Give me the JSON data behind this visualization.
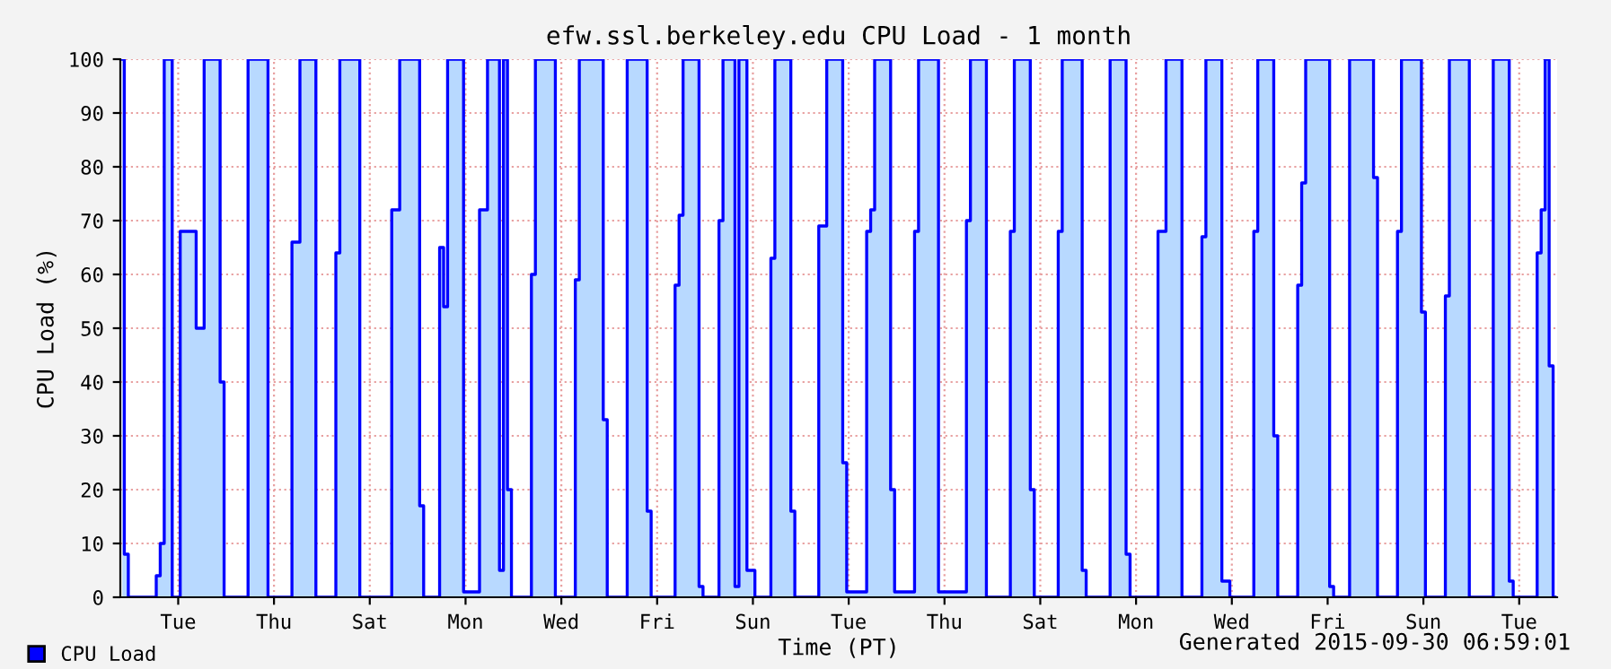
{
  "chart_data": {
    "type": "area",
    "title": "efw.ssl.berkeley.edu CPU Load - 1 month",
    "xlabel": "Time (PT)",
    "ylabel": "CPU Load (%)",
    "annotations": [
      "Generated 2015-09-30 06:59:01"
    ],
    "ylim": [
      0,
      100
    ],
    "yticks": [
      0,
      10,
      20,
      30,
      40,
      50,
      60,
      70,
      80,
      90,
      100
    ],
    "grid": true,
    "legend": "bottom left",
    "categories": [
      null,
      null,
      null,
      null,
      null,
      null,
      null,
      null,
      null,
      null,
      null,
      null,
      null,
      null,
      "Tue",
      null,
      null,
      null,
      null,
      null,
      null,
      null,
      null,
      null,
      null,
      null,
      null,
      null,
      null,
      null,
      null,
      null,
      null,
      null,
      null,
      null,
      null,
      null,
      "Thu",
      null,
      null,
      null,
      null,
      null,
      null,
      null,
      null,
      null,
      null,
      null,
      null,
      null,
      null,
      null,
      null,
      null,
      null,
      null,
      null,
      null,
      null,
      null,
      "Sat",
      null,
      null,
      null,
      null,
      null,
      null,
      null,
      null,
      null,
      null,
      null,
      null,
      null,
      null,
      null,
      null,
      null,
      null,
      null,
      null,
      null,
      null,
      null,
      "Mon",
      null,
      null,
      null,
      null,
      null,
      null,
      null,
      null,
      null,
      null,
      null,
      null,
      null,
      null,
      null,
      null,
      null,
      null,
      null,
      null,
      null,
      null,
      null,
      "Wed",
      null,
      null,
      null,
      null,
      null,
      null,
      null,
      null,
      null,
      null,
      null,
      null,
      null,
      null,
      null,
      null,
      null,
      null,
      null,
      null,
      null,
      null,
      null,
      "Fri",
      null,
      null,
      null,
      null,
      null,
      null,
      null,
      null,
      null,
      null,
      null,
      null,
      null,
      null,
      null,
      null,
      null,
      null,
      null,
      null,
      null,
      null,
      null,
      "Sun",
      null,
      null,
      null,
      null,
      null,
      null,
      null,
      null,
      null,
      null,
      null,
      null,
      null,
      null,
      null,
      null,
      null,
      null,
      null,
      null,
      null,
      null,
      null,
      "Tue",
      null,
      null,
      null,
      null,
      null,
      null,
      null,
      null,
      null,
      null,
      null,
      null,
      null,
      null,
      null,
      null,
      null,
      null,
      null,
      null,
      null,
      null,
      null,
      "Thu",
      null,
      null,
      null,
      null,
      null,
      null,
      null,
      null,
      null,
      null,
      null,
      null,
      null,
      null,
      null,
      null,
      null,
      null,
      null,
      null,
      null,
      null,
      null,
      "Sat",
      null,
      null,
      null,
      null,
      null,
      null,
      null,
      null,
      null,
      null,
      null,
      null,
      null,
      null,
      null,
      null,
      null,
      null,
      null,
      null,
      null,
      null,
      null,
      "Mon",
      null,
      null,
      null,
      null,
      null,
      null,
      null,
      null,
      null,
      null,
      null,
      null,
      null,
      null,
      null,
      null,
      null,
      null,
      null,
      null,
      null,
      null,
      null,
      "Wed",
      null,
      null,
      null,
      null,
      null,
      null,
      null,
      null,
      null,
      null,
      null,
      null,
      null,
      null,
      null,
      null,
      null,
      null,
      null,
      null,
      null,
      null,
      null,
      "Fri",
      null,
      null,
      null,
      null,
      null,
      null,
      null,
      null,
      null,
      null,
      null,
      null,
      null,
      null,
      null,
      null,
      null,
      null,
      null,
      null,
      null,
      null,
      null,
      "Sun",
      null,
      null,
      null,
      null,
      null,
      null,
      null,
      null,
      null,
      null,
      null,
      null,
      null,
      null,
      null,
      null,
      null,
      null,
      null,
      null,
      null,
      null,
      null,
      "Tue",
      null,
      null,
      null,
      null,
      null,
      null,
      null,
      null,
      null
    ],
    "series": [
      {
        "name": "CPU Load",
        "color": "#0000ff",
        "values": [
          100,
          8,
          0,
          0,
          0,
          0,
          0,
          0,
          0,
          4,
          10,
          100,
          100,
          0,
          0,
          68,
          68,
          68,
          68,
          50,
          50,
          100,
          100,
          100,
          100,
          40,
          0,
          0,
          0,
          0,
          0,
          0,
          100,
          100,
          100,
          100,
          100,
          0,
          0,
          0,
          0,
          0,
          0,
          66,
          66,
          100,
          100,
          100,
          100,
          0,
          0,
          0,
          0,
          0,
          64,
          100,
          100,
          100,
          100,
          100,
          0,
          0,
          0,
          0,
          0,
          0,
          0,
          0,
          72,
          72,
          100,
          100,
          100,
          100,
          100,
          17,
          0,
          0,
          0,
          0,
          65,
          54,
          100,
          100,
          100,
          100,
          1,
          1,
          1,
          1,
          72,
          72,
          100,
          100,
          100,
          5,
          100,
          20,
          0,
          0,
          0,
          0,
          0,
          60,
          100,
          100,
          100,
          100,
          100,
          0,
          0,
          0,
          0,
          0,
          59,
          100,
          100,
          100,
          100,
          100,
          100,
          33,
          0,
          0,
          0,
          0,
          0,
          100,
          100,
          100,
          100,
          100,
          16,
          0,
          0,
          0,
          0,
          0,
          0,
          58,
          71,
          100,
          100,
          100,
          100,
          2,
          0,
          0,
          0,
          0,
          70,
          100,
          100,
          100,
          2,
          100,
          100,
          5,
          5,
          0,
          0,
          0,
          0,
          63,
          100,
          100,
          100,
          100,
          16,
          0,
          0,
          0,
          0,
          0,
          0,
          69,
          69,
          100,
          100,
          100,
          100,
          25,
          1,
          1,
          1,
          1,
          1,
          68,
          72,
          100,
          100,
          100,
          100,
          20,
          1,
          1,
          1,
          1,
          1,
          68,
          100,
          100,
          100,
          100,
          100,
          1,
          1,
          1,
          1,
          1,
          1,
          1,
          70,
          100,
          100,
          100,
          100,
          0,
          0,
          0,
          0,
          0,
          0,
          68,
          100,
          100,
          100,
          100,
          20,
          0,
          0,
          0,
          0,
          0,
          0,
          68,
          100,
          100,
          100,
          100,
          100,
          5,
          0,
          0,
          0,
          0,
          0,
          0,
          100,
          100,
          100,
          100,
          8,
          0,
          0,
          0,
          0,
          0,
          0,
          0,
          68,
          68,
          100,
          100,
          100,
          100,
          0,
          0,
          0,
          0,
          0,
          67,
          100,
          100,
          100,
          100,
          3,
          3,
          0,
          0,
          0,
          0,
          0,
          0,
          68,
          100,
          100,
          100,
          100,
          30,
          0,
          0,
          0,
          0,
          0,
          58,
          77,
          100,
          100,
          100,
          100,
          100,
          100,
          2,
          0,
          0,
          0,
          0,
          100,
          100,
          100,
          100,
          100,
          100,
          78,
          0,
          0,
          0,
          0,
          0,
          68,
          100,
          100,
          100,
          100,
          100,
          53,
          0,
          0,
          0,
          0,
          0,
          56,
          100,
          100,
          100,
          100,
          100,
          0,
          0,
          0,
          0,
          0,
          0,
          100,
          100,
          100,
          100,
          3,
          0,
          0,
          0,
          0,
          0,
          0,
          64,
          72,
          100,
          43,
          0
        ]
      }
    ]
  }
}
